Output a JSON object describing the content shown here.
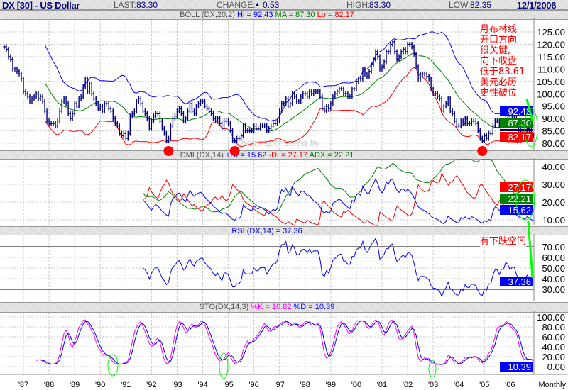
{
  "header": {
    "title": "DX [30] - US Dollar",
    "last_label": "LAST:",
    "last": "83.30",
    "change_label": "CHANGE:",
    "change_icon": "triangle-up-icon",
    "change_glyph": "▲",
    "change": "0.53",
    "high_label": "HIGH:",
    "high": "83.30",
    "low_label": "LOW:",
    "low": "82.35",
    "date": "12/1/2006"
  },
  "panels": {
    "boll": {
      "label": "BOLL (DX,20,2)",
      "hi": "Hi = 92.43",
      "ma": "MA = 87.30",
      "lo": "Lo = 82.17"
    },
    "dmi": {
      "label": "DMI (DX,14)",
      "pdi": "+DI = 15.62",
      "mdi": "-DI = 27.17",
      "adx": "ADX = 22.21"
    },
    "rsi": {
      "label": "RSI (DX,14) = 37.36"
    },
    "sto": {
      "label": "STO(DX,14,3)",
      "k": "%K = 10.82",
      "d": "%D = 10.39"
    }
  },
  "watermark": "Charts sponsored by",
  "annotations": {
    "main_note": [
      "月布林线",
      "开口方向",
      "很关键,",
      "向下收盘",
      "低于83.61",
      "美元必历",
      "史性破位"
    ],
    "rsi_note": "有下跌空间"
  },
  "x_axis": {
    "labels": [
      "'87",
      "'88",
      "'89",
      "'90",
      "'91",
      "'92",
      "'93",
      "'94",
      "'95",
      "'96",
      "'97",
      "'98",
      "'99",
      "'00",
      "'01",
      "'02",
      "'03",
      "'04",
      "'05",
      "'06"
    ],
    "period": "Monthly"
  },
  "colors": {
    "price": "#000080",
    "upper": "#0000ff",
    "middle": "#008000",
    "lower": "#ff0000",
    "pdi": "#0000ff",
    "mdi": "#ff0000",
    "adx": "#008000",
    "rsi": "#0000ff",
    "k": "#ff00ff",
    "d": "#0000ff",
    "annotation": "#ff0000",
    "highlight": "#00ff00"
  },
  "chart_data": [
    {
      "type": "ohlc-bar",
      "series_name": "DX [30] - US Dollar",
      "frequency": "monthly",
      "start": "1986-04",
      "end": "2006-12",
      "close": [
        119,
        118,
        115,
        114,
        110,
        110,
        109,
        108,
        106,
        101,
        100,
        99,
        97,
        98,
        99,
        100,
        98,
        99,
        97,
        93,
        89,
        88,
        88,
        88,
        87,
        89,
        93,
        97,
        98,
        96,
        92,
        90,
        92,
        96,
        95,
        98,
        99,
        103,
        106,
        101,
        104,
        100,
        98,
        96,
        94,
        95,
        93,
        96,
        96,
        94,
        93,
        90,
        88,
        87,
        84,
        83,
        84,
        82,
        84,
        91,
        92,
        93,
        97,
        98,
        96,
        93,
        92,
        90,
        86,
        89,
        91,
        92,
        92,
        89,
        86,
        84,
        81,
        82,
        87,
        90,
        91,
        93,
        94,
        92,
        89,
        90,
        93,
        96,
        93,
        92,
        95,
        96,
        97,
        97,
        95,
        94,
        93,
        92,
        90,
        89,
        90,
        88,
        86,
        89,
        89,
        88,
        85,
        81,
        81,
        82,
        82,
        83,
        87,
        85,
        85,
        85,
        85,
        87,
        86,
        86,
        87,
        87,
        87,
        85,
        86,
        87,
        88,
        88,
        89,
        93,
        96,
        96,
        98,
        95,
        96,
        100,
        99,
        97,
        97,
        99,
        100,
        100,
        99,
        101,
        100,
        101,
        101,
        101,
        99,
        94,
        93,
        95,
        94,
        96,
        99,
        100,
        101,
        102,
        102,
        100,
        100,
        99,
        99,
        102,
        102,
        105,
        106,
        106,
        110,
        108,
        107,
        109,
        112,
        114,
        117,
        115,
        110,
        111,
        113,
        117,
        117,
        120,
        121,
        117,
        114,
        115,
        117,
        118,
        117,
        120,
        120,
        119,
        116,
        111,
        106,
        108,
        108,
        108,
        107,
        106,
        102,
        100,
        100,
        99,
        98,
        93,
        95,
        96,
        98,
        93,
        92,
        89,
        87,
        87,
        89,
        88,
        90,
        88,
        88,
        89,
        89,
        88,
        85,
        82,
        81,
        83,
        82,
        84,
        84,
        87,
        89,
        89,
        87,
        89,
        89,
        92,
        91,
        89,
        90,
        90,
        87,
        85,
        85,
        85,
        85,
        86,
        85,
        83,
        83.3
      ],
      "overlay": "Bollinger Bands (20,2)",
      "y_ticks": [
        80,
        85,
        90,
        95,
        100,
        105,
        110,
        115,
        120,
        125
      ],
      "latest": {
        "upper": 92.43,
        "middle": 87.3,
        "lower": 82.17
      },
      "markers": [
        "1992-09",
        "1995-04",
        "2004-12"
      ]
    },
    {
      "type": "line",
      "indicator": "DMI (DX,14)",
      "y_ticks": [
        10,
        20,
        30,
        40
      ],
      "latest": {
        "+DI": 15.62,
        "-DI": 27.17,
        "ADX": 22.21
      }
    },
    {
      "type": "line",
      "indicator": "RSI (DX,14)",
      "y_ticks": [
        30,
        40,
        50,
        60,
        70
      ],
      "reference_lines": [
        30,
        70
      ],
      "latest": 37.36
    },
    {
      "type": "line",
      "indicator": "STO (DX,14,3)",
      "y_ticks": [
        0,
        20,
        40,
        60,
        80,
        100
      ],
      "latest": {
        "%K": 10.82,
        "%D": 10.39
      }
    }
  ]
}
